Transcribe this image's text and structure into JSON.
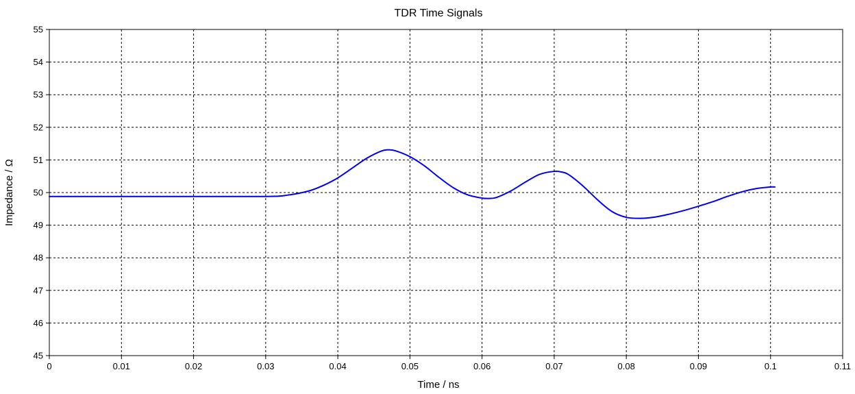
{
  "chart_data": {
    "type": "line",
    "title": "TDR Time Signals",
    "xlabel": "Time / ns",
    "ylabel": "Impedance / Ω",
    "xlim": [
      0,
      0.11
    ],
    "ylim": [
      45,
      55
    ],
    "xticks": [
      "0",
      "0.01",
      "0.02",
      "0.03",
      "0.04",
      "0.05",
      "0.06",
      "0.07",
      "0.08",
      "0.09",
      "0.1",
      "0.11"
    ],
    "yticks": [
      "45",
      "46",
      "47",
      "48",
      "49",
      "50",
      "51",
      "52",
      "53",
      "54",
      "55"
    ],
    "grid": true,
    "colors": {
      "series": "#0000e6"
    },
    "series": [
      {
        "x": [
          0,
          0.01,
          0.02,
          0.03,
          0.033,
          0.036,
          0.038,
          0.04,
          0.042,
          0.044,
          0.046,
          0.047,
          0.048,
          0.05,
          0.052,
          0.054,
          0.056,
          0.058,
          0.06,
          0.061,
          0.062,
          0.064,
          0.066,
          0.068,
          0.07,
          0.071,
          0.072,
          0.074,
          0.076,
          0.078,
          0.08,
          0.082,
          0.084,
          0.086,
          0.088,
          0.09,
          0.092,
          0.094,
          0.096,
          0.098,
          0.1,
          0.1006
        ],
        "values": [
          49.88,
          49.88,
          49.88,
          49.88,
          49.92,
          50.05,
          50.22,
          50.45,
          50.75,
          51.05,
          51.27,
          51.31,
          51.28,
          51.1,
          50.82,
          50.47,
          50.15,
          49.93,
          49.83,
          49.82,
          49.85,
          50.05,
          50.32,
          50.56,
          50.65,
          50.63,
          50.55,
          50.2,
          49.78,
          49.42,
          49.24,
          49.21,
          49.25,
          49.34,
          49.45,
          49.58,
          49.72,
          49.88,
          50.02,
          50.12,
          50.17,
          50.17
        ]
      }
    ]
  }
}
